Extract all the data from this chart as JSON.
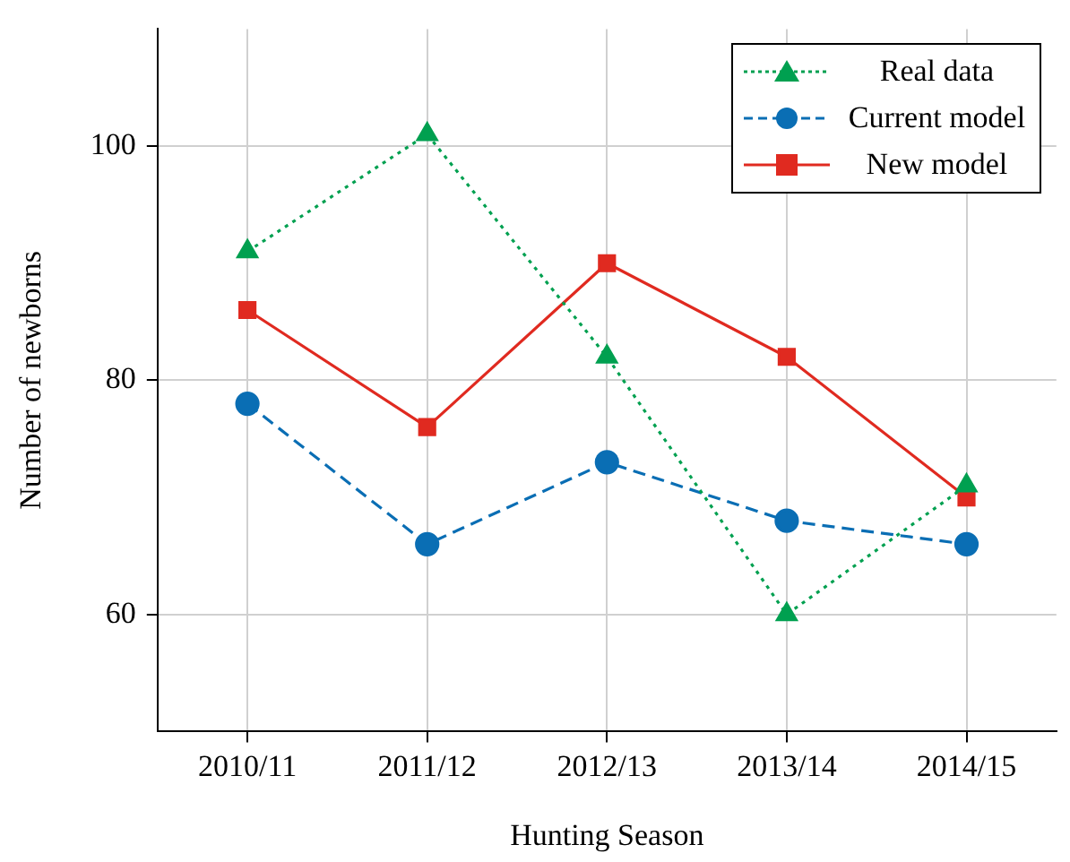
{
  "chart_data": {
    "type": "line",
    "xlabel": "Hunting Season",
    "ylabel": "Number of newborns",
    "categories": [
      "2010/11",
      "2011/12",
      "2012/13",
      "2013/14",
      "2014/15"
    ],
    "series": [
      {
        "name": "Real data",
        "color": "#00a050",
        "values": [
          91,
          101,
          82,
          60,
          71
        ],
        "marker": "triangle",
        "line_style": "dotted"
      },
      {
        "name": "Current model",
        "color": "#0a6eb4",
        "values": [
          78,
          66,
          73,
          68,
          66
        ],
        "marker": "circle",
        "line_style": "dashed"
      },
      {
        "name": "New model",
        "color": "#e02a20",
        "values": [
          86,
          76,
          90,
          82,
          70
        ],
        "marker": "square",
        "line_style": "solid"
      }
    ],
    "ylim": [
      50,
      110
    ],
    "yticks": [
      60,
      80,
      100
    ],
    "grid": true,
    "legend": "top right"
  }
}
